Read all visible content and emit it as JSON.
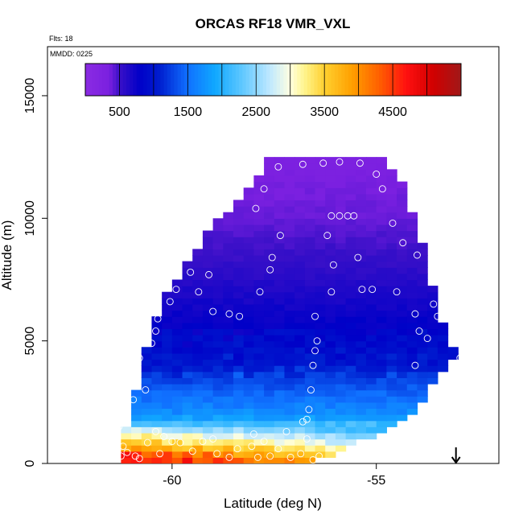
{
  "chart_data": {
    "type": "heatmap",
    "title": "ORCAS RF18 VMR_VXL",
    "flts_label": "Flts: 18",
    "mmdd_label": "MMDD: 0225",
    "xlabel": "Latitude (deg N)",
    "ylabel": "Altitude (m)",
    "xlim": [
      -63.05,
      -52
    ],
    "ylim": [
      0,
      17000
    ],
    "x_ticks": [
      -60,
      -55
    ],
    "x_tick_labels": [
      "-60",
      "-55"
    ],
    "y_ticks": [
      0,
      5000,
      10000,
      15000
    ],
    "y_tick_labels": [
      "0",
      "5000",
      "10000",
      "15000"
    ],
    "colorbar": {
      "min": 0,
      "max": 5500,
      "ticks": [
        500,
        1500,
        2500,
        3500,
        4500
      ],
      "tick_labels": [
        "500",
        "1500",
        "2500",
        "3500",
        "4500"
      ],
      "colors": [
        [
          0,
          "#8a2be2"
        ],
        [
          350,
          "#7b20e0"
        ],
        [
          500,
          "#3a10c8"
        ],
        [
          800,
          "#0000c8"
        ],
        [
          1100,
          "#0020d0"
        ],
        [
          1500,
          "#1070ff"
        ],
        [
          1900,
          "#10a8ff"
        ],
        [
          2300,
          "#60c8ff"
        ],
        [
          2700,
          "#bfe8ff"
        ],
        [
          3000,
          "#ffffe0"
        ],
        [
          3200,
          "#fff590"
        ],
        [
          3500,
          "#ffd030"
        ],
        [
          3900,
          "#ffa000"
        ],
        [
          4300,
          "#ff6000"
        ],
        [
          4700,
          "#ff1010"
        ],
        [
          5100,
          "#d00000"
        ],
        [
          5500,
          "#a01818"
        ]
      ]
    },
    "field_profile": [
      [
        0,
        4600
      ],
      [
        250,
        4500
      ],
      [
        500,
        3900
      ],
      [
        750,
        3500
      ],
      [
        1000,
        3100
      ],
      [
        1250,
        2800
      ],
      [
        1500,
        2300
      ],
      [
        1800,
        1900
      ],
      [
        2200,
        1650
      ],
      [
        2600,
        1550
      ],
      [
        3000,
        1400
      ],
      [
        3500,
        1250
      ],
      [
        4000,
        1000
      ],
      [
        5000,
        850
      ],
      [
        6500,
        700
      ],
      [
        8000,
        550
      ],
      [
        10000,
        400
      ],
      [
        13000,
        300
      ]
    ],
    "region_left_edge": [
      [
        0,
        -61.25
      ],
      [
        600,
        -61.2
      ],
      [
        1200,
        -61.1
      ],
      [
        1800,
        -60.9
      ],
      [
        2500,
        -60.8
      ],
      [
        3500,
        -60.7
      ],
      [
        4500,
        -60.55
      ],
      [
        5500,
        -60.4
      ],
      [
        6500,
        -60.15
      ],
      [
        7500,
        -59.8
      ],
      [
        8500,
        -59.4
      ],
      [
        9500,
        -59.0
      ],
      [
        10500,
        -58.4
      ],
      [
        11500,
        -57.9
      ],
      [
        12500,
        -57.5
      ]
    ],
    "region_right_edge": [
      [
        0,
        -57.0
      ],
      [
        300,
        -56.3
      ],
      [
        600,
        -55.9
      ],
      [
        1000,
        -55.4
      ],
      [
        1400,
        -54.9
      ],
      [
        1800,
        -54.4
      ],
      [
        2200,
        -54.1
      ],
      [
        2800,
        -53.9
      ],
      [
        3500,
        -53.6
      ],
      [
        4000,
        -53.3
      ],
      [
        4500,
        -53.2
      ],
      [
        5000,
        -53.3
      ],
      [
        5500,
        -53.45
      ],
      [
        6500,
        -53.6
      ],
      [
        7500,
        -53.8
      ],
      [
        8500,
        -53.9
      ],
      [
        9500,
        -54.1
      ],
      [
        10500,
        -54.3
      ],
      [
        11500,
        -54.5
      ],
      [
        12500,
        -54.9
      ]
    ],
    "region_top": 12400,
    "flight_path_points": [
      [
        -57.4,
        12100
      ],
      [
        -56.8,
        12200
      ],
      [
        -56.3,
        12250
      ],
      [
        -55.9,
        12300
      ],
      [
        -55.4,
        12250
      ],
      [
        -55.0,
        11800
      ],
      [
        -54.85,
        11200
      ],
      [
        -57.75,
        11200
      ],
      [
        -57.95,
        10400
      ],
      [
        -56.1,
        10100
      ],
      [
        -55.9,
        10100
      ],
      [
        -55.7,
        10100
      ],
      [
        -55.55,
        10100
      ],
      [
        -54.6,
        9800
      ],
      [
        -57.35,
        9300
      ],
      [
        -56.2,
        9300
      ],
      [
        -54.35,
        9000
      ],
      [
        -57.55,
        8400
      ],
      [
        -55.45,
        8400
      ],
      [
        -54.0,
        8500
      ],
      [
        -57.6,
        7900
      ],
      [
        -56.05,
        8100
      ],
      [
        -55.35,
        7100
      ],
      [
        -55.1,
        7100
      ],
      [
        -54.5,
        7000
      ],
      [
        -56.1,
        7000
      ],
      [
        -57.85,
        7000
      ],
      [
        -59.35,
        7000
      ],
      [
        -59.55,
        7800
      ],
      [
        -59.1,
        7700
      ],
      [
        -59.9,
        7100
      ],
      [
        -60.05,
        6600
      ],
      [
        -59.0,
        6200
      ],
      [
        -58.6,
        6100
      ],
      [
        -58.35,
        6000
      ],
      [
        -56.5,
        6000
      ],
      [
        -54.05,
        6100
      ],
      [
        -53.6,
        6500
      ],
      [
        -53.5,
        6000
      ],
      [
        -60.35,
        5900
      ],
      [
        -60.4,
        5400
      ],
      [
        -60.5,
        4900
      ],
      [
        -60.8,
        4300
      ],
      [
        -60.95,
        3700
      ],
      [
        -60.65,
        3000
      ],
      [
        -53.95,
        5400
      ],
      [
        -53.75,
        5100
      ],
      [
        -53.05,
        5000
      ],
      [
        -52.95,
        4300
      ],
      [
        -54.05,
        4000
      ],
      [
        -56.45,
        5000
      ],
      [
        -56.5,
        4600
      ],
      [
        -56.55,
        4000
      ],
      [
        -56.6,
        3000
      ],
      [
        -56.65,
        2200
      ],
      [
        -56.7,
        1800
      ],
      [
        -60.95,
        2600
      ],
      [
        -61.1,
        2000
      ],
      [
        -61.3,
        1500
      ],
      [
        -61.35,
        1000
      ],
      [
        -61.2,
        700
      ],
      [
        -61.1,
        450
      ],
      [
        -60.9,
        300
      ],
      [
        -60.8,
        200
      ],
      [
        -60.6,
        850
      ],
      [
        -60.4,
        1300
      ],
      [
        -60.2,
        1100
      ],
      [
        -60.0,
        900
      ],
      [
        -59.8,
        850
      ],
      [
        -59.5,
        500
      ],
      [
        -59.25,
        900
      ],
      [
        -59.0,
        1000
      ],
      [
        -58.9,
        400
      ],
      [
        -58.6,
        250
      ],
      [
        -58.4,
        600
      ],
      [
        -58.0,
        1200
      ],
      [
        -58.05,
        700
      ],
      [
        -57.9,
        250
      ],
      [
        -57.75,
        900
      ],
      [
        -57.6,
        300
      ],
      [
        -57.4,
        600
      ],
      [
        -57.2,
        1300
      ],
      [
        -57.1,
        250
      ],
      [
        -56.85,
        400
      ],
      [
        -56.7,
        1000
      ],
      [
        -56.55,
        150
      ],
      [
        -56.4,
        300
      ],
      [
        -56.8,
        1700
      ],
      [
        -61.25,
        300
      ],
      [
        -60.3,
        400
      ]
    ],
    "arrow_marker": {
      "x": -53.05,
      "y": 0
    }
  }
}
